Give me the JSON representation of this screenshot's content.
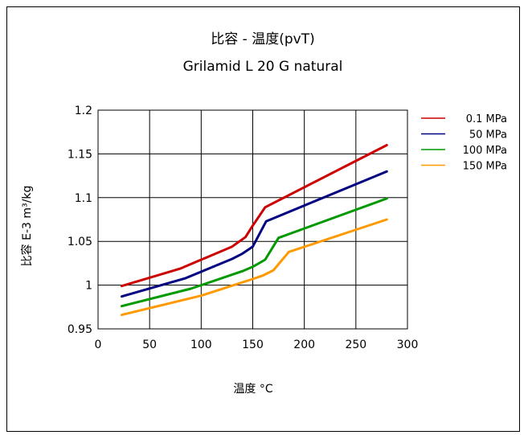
{
  "chart_data": {
    "type": "line",
    "title": "比容 - 温度(pvT)",
    "subtitle": "Grilamid L 20 G natural",
    "xlabel": "温度 °C",
    "ylabel": "比容 E-3 m³/kg",
    "xlim": [
      0,
      300
    ],
    "ylim": [
      0.95,
      1.2
    ],
    "xticks": [
      0,
      50,
      100,
      150,
      200,
      250,
      300
    ],
    "yticks": [
      0.95,
      1,
      1.05,
      1.1,
      1.15,
      1.2
    ],
    "xtick_labels": [
      "0",
      "50",
      "100",
      "150",
      "200",
      "250",
      "300"
    ],
    "ytick_labels": [
      "0.95",
      "1",
      "1.05",
      "1.1",
      "1.15",
      "1.2"
    ],
    "grid": true,
    "legend_position": "top-right",
    "series": [
      {
        "name": "0.1 MPa",
        "color": "#cc0000",
        "x": [
          23,
          80,
          130,
          143,
          150,
          162,
          280
        ],
        "y": [
          0.999,
          1.019,
          1.044,
          1.055,
          1.068,
          1.089,
          1.16
        ]
      },
      {
        "name": "50 MPa",
        "color": "#000080",
        "x": [
          23,
          85,
          130,
          140,
          150,
          163,
          280
        ],
        "y": [
          0.987,
          1.008,
          1.03,
          1.036,
          1.044,
          1.073,
          1.13
        ]
      },
      {
        "name": "100 MPa",
        "color": "#009900",
        "x": [
          23,
          90,
          140,
          150,
          162,
          175,
          280
        ],
        "y": [
          0.976,
          0.996,
          1.016,
          1.021,
          1.029,
          1.054,
          1.099
        ]
      },
      {
        "name": "150 MPa",
        "color": "#ff9900",
        "x": [
          23,
          100,
          150,
          160,
          170,
          185,
          280
        ],
        "y": [
          0.966,
          0.988,
          1.007,
          1.011,
          1.017,
          1.038,
          1.075
        ]
      }
    ]
  }
}
